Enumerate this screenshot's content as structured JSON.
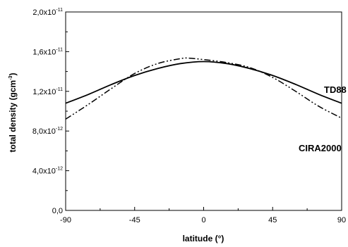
{
  "chart_data": {
    "type": "line",
    "title": "",
    "xlabel": "latitude (°)",
    "ylabel_base": "total density (gcm",
    "ylabel_sup": "-3",
    "ylabel_end": ")",
    "xlim": [
      -90,
      90
    ],
    "ylim": [
      0,
      2e-11
    ],
    "x_ticks": [
      {
        "value": -90,
        "label": "-90"
      },
      {
        "value": -45,
        "label": "-45"
      },
      {
        "value": 0,
        "label": "0"
      },
      {
        "value": 45,
        "label": "45"
      },
      {
        "value": 90,
        "label": "90"
      }
    ],
    "y_ticks": [
      {
        "value": 0,
        "label": "0,0",
        "mant": "0,0",
        "exp": ""
      },
      {
        "value": 4e-12,
        "label": "4,0x10-12",
        "mant": "4,0x10",
        "exp": "-12"
      },
      {
        "value": 8e-12,
        "label": "8,0x10-12",
        "mant": "8,0x10",
        "exp": "-12"
      },
      {
        "value": 1.2e-11,
        "label": "1,2x10-11",
        "mant": "1,2x10",
        "exp": "-11"
      },
      {
        "value": 1.6e-11,
        "label": "1,6x10-11",
        "mant": "1,6x10",
        "exp": "-11"
      },
      {
        "value": 2e-11,
        "label": "2,0x10-11",
        "mant": "2,0x10",
        "exp": "-11"
      }
    ],
    "series": [
      {
        "name": "TD88",
        "style": "solid",
        "x": [
          -90,
          -75,
          -60,
          -45,
          -30,
          -15,
          0,
          15,
          30,
          45,
          60,
          75,
          90
        ],
        "y": [
          1.08e-11,
          1.17e-11,
          1.27e-11,
          1.36e-11,
          1.43e-11,
          1.48e-11,
          1.5e-11,
          1.48e-11,
          1.43e-11,
          1.36e-11,
          1.27e-11,
          1.17e-11,
          1.08e-11
        ]
      },
      {
        "name": "CIRA2000",
        "style": "dash-dot-dot",
        "x": [
          -90,
          -75,
          -60,
          -45,
          -30,
          -15,
          -10,
          0,
          15,
          30,
          45,
          60,
          75,
          90
        ],
        "y": [
          9.2e-12,
          1.07e-11,
          1.23e-11,
          1.38e-11,
          1.48e-11,
          1.53e-11,
          1.535e-11,
          1.52e-11,
          1.49e-11,
          1.44e-11,
          1.34e-11,
          1.2e-11,
          1.05e-11,
          9.3e-12
        ]
      }
    ],
    "legend": "inline-right",
    "grid": false
  }
}
